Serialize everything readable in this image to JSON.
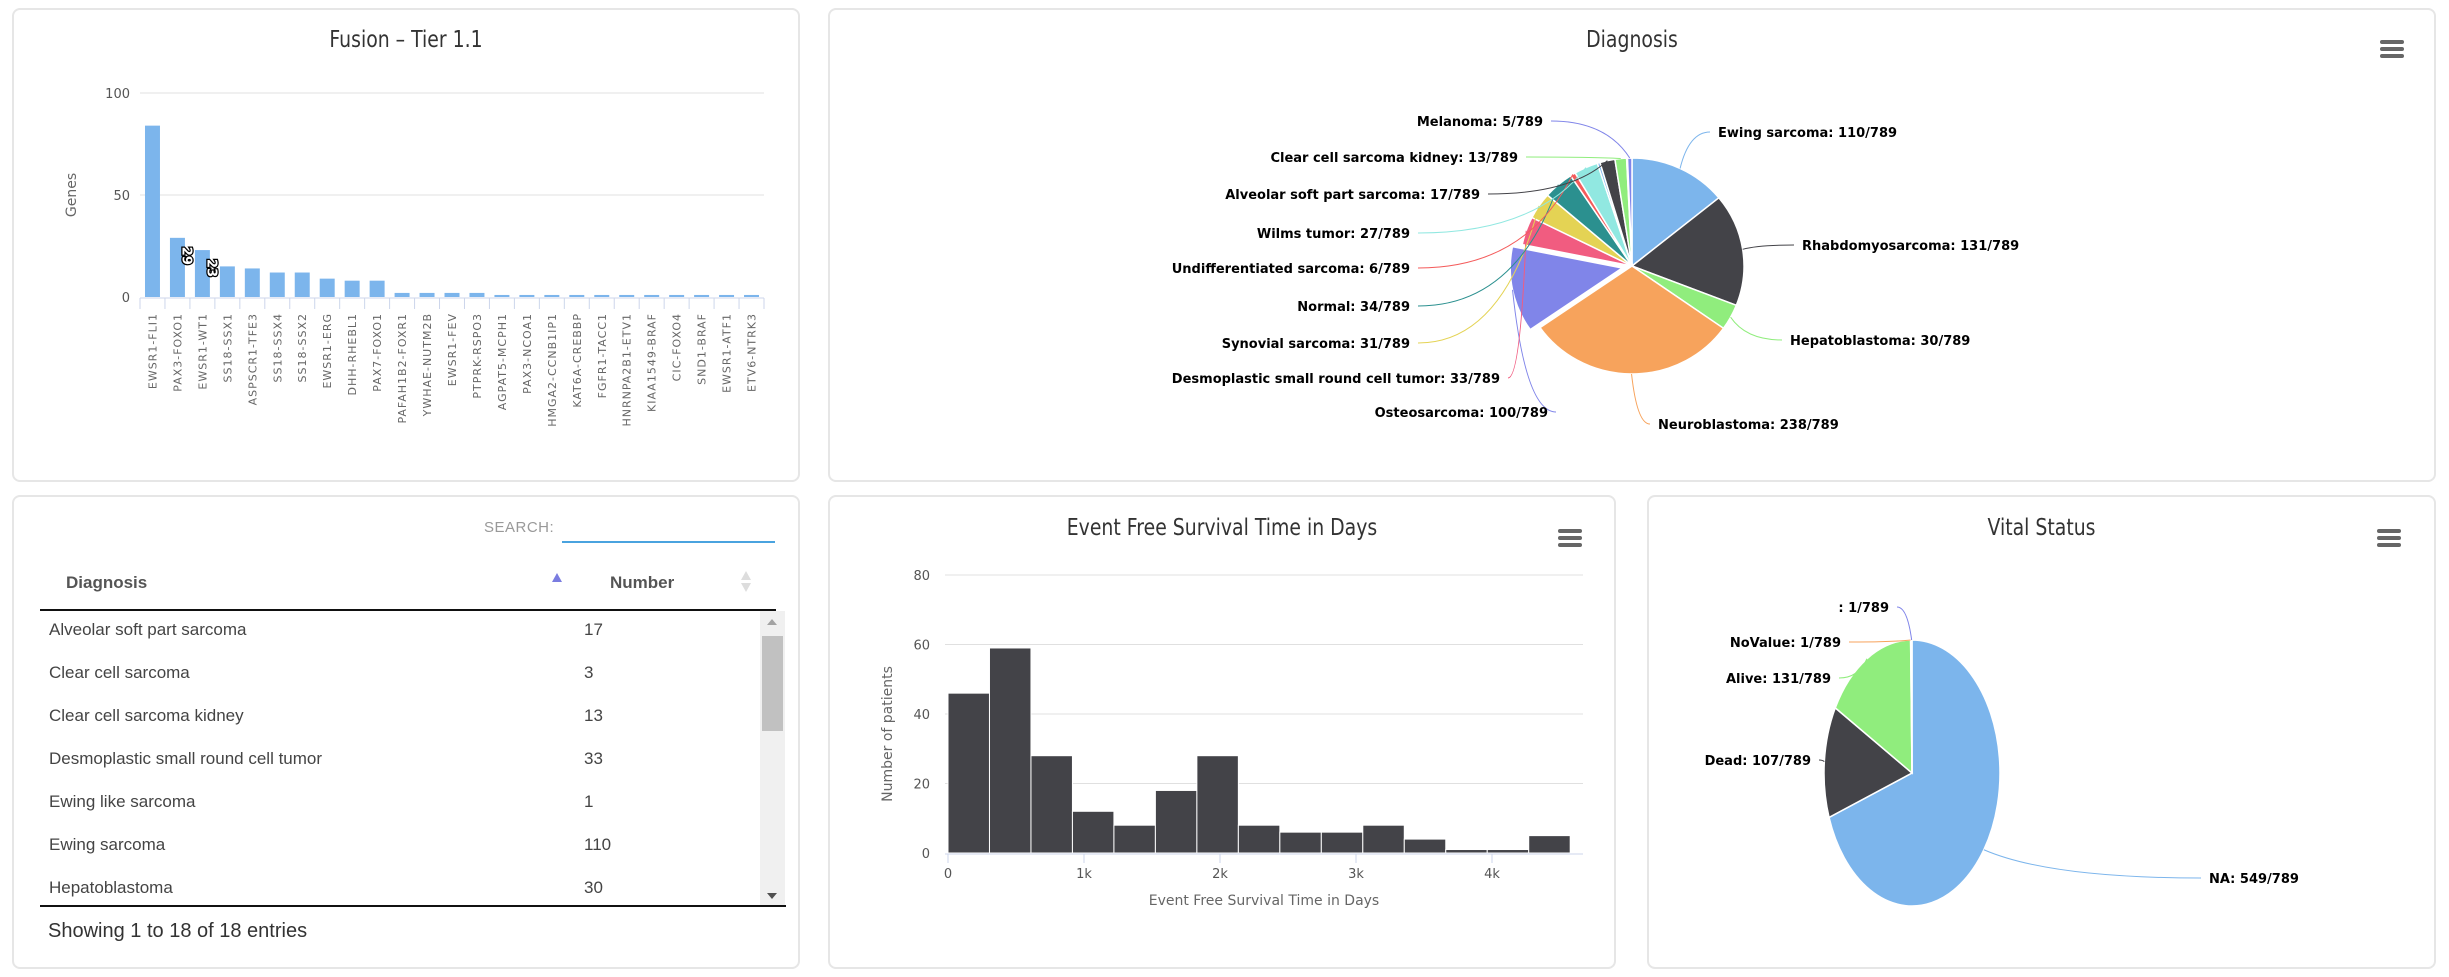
{
  "fusion_panel": {
    "chart_data": {
      "type": "bar",
      "title": "Fusion – Tier 1.1",
      "xlabel": "",
      "ylabel": "Genes",
      "ylim": [
        0,
        100
      ],
      "yticks": [
        "0",
        "50",
        "100"
      ],
      "grid": true,
      "color": "#7cb5ec",
      "categories": [
        "EWSR1-FLI1",
        "PAX3-FOXO1",
        "EWSR1-WT1",
        "SS18-SSX1",
        "ASPSCR1-TFE3",
        "SS18-SSX4",
        "SS18-SSX2",
        "EWSR1-ERG",
        "DHH-RHEBL1",
        "PAX7-FOXO1",
        "PAFAH1B2-FOXR1",
        "YWHAE-NUTM2B",
        "EWSR1-FEV",
        "PTPRK-RSPO3",
        "AGPAT5-MCPH1",
        "PAX3-NCOA1",
        "HMGA2-CCNB1IP1",
        "KAT6A-CREBBP",
        "FGFR1-TACC1",
        "HNRNPA2B1-ETV1",
        "KIAA1549-BRAF",
        "CIC-FOXO4",
        "SND1-BRAF",
        "EWSR1-ATF1",
        "ETV6-NTRK3"
      ],
      "values": [
        84,
        29,
        23,
        15,
        14,
        12,
        12,
        9,
        8,
        8,
        2,
        2,
        2,
        2,
        1,
        1,
        1,
        1,
        1,
        1,
        1,
        1,
        1,
        1,
        1
      ],
      "data_labels": [
        {
          "category": "PAX3-FOXO1",
          "text": "29"
        },
        {
          "category": "EWSR1-WT1",
          "text": "23"
        }
      ]
    }
  },
  "diagnosis_panel": {
    "menu_icon": "hamburger-menu-icon",
    "chart_data": {
      "type": "pie",
      "title": "Diagnosis",
      "total": 789,
      "slices": [
        {
          "name": "Ewing sarcoma",
          "value": 110,
          "label": "Ewing sarcoma: 110/789",
          "color": "#7cb5ec"
        },
        {
          "name": "Rhabdomyosarcoma",
          "value": 131,
          "label": "Rhabdomyosarcoma: 131/789",
          "color": "#434348"
        },
        {
          "name": "Hepatoblastoma",
          "value": 30,
          "label": "Hepatoblastoma: 30/789",
          "color": "#90ed7d"
        },
        {
          "name": "Neuroblastoma",
          "value": 238,
          "label": "Neuroblastoma: 238/789",
          "color": "#f7a35c"
        },
        {
          "name": "Osteosarcoma",
          "value": 100,
          "label": "Osteosarcoma: 100/789",
          "color": "#8085e9",
          "sliced": true
        },
        {
          "name": "Desmoplastic small round cell tumor",
          "value": 33,
          "label": "Desmoplastic small round cell tumor: 33/789",
          "color": "#f15c80"
        },
        {
          "name": "Synovial sarcoma",
          "value": 31,
          "label": "Synovial sarcoma: 31/789",
          "color": "#e4d354"
        },
        {
          "name": "Normal",
          "value": 34,
          "label": "Normal: 34/789",
          "color": "#2b908f"
        },
        {
          "name": "Undifferentiated sarcoma",
          "value": 6,
          "label": "Undifferentiated sarcoma: 6/789",
          "color": "#f45b5b"
        },
        {
          "name": "Wilms tumor",
          "value": 27,
          "label": "Wilms tumor: 27/789",
          "color": "#91e8e1"
        },
        {
          "name": "Clear cell sarcoma",
          "value": 3,
          "label": "",
          "color": "#7cb5ec"
        },
        {
          "name": "Alveolar soft part sarcoma",
          "value": 17,
          "label": "Alveolar soft part sarcoma: 17/789",
          "color": "#434348"
        },
        {
          "name": "Clear cell sarcoma kidney",
          "value": 13,
          "label": "Clear cell sarcoma kidney: 13/789",
          "color": "#90ed7d"
        },
        {
          "name": "Ewing like sarcoma",
          "value": 1,
          "label": "",
          "color": "#f7a35c"
        },
        {
          "name": "Melanoma",
          "value": 5,
          "label": "Melanoma: 5/789",
          "color": "#8085e9"
        }
      ]
    }
  },
  "table_panel": {
    "search_label": "SEARCH:",
    "search_value": "",
    "columns": [
      "Diagnosis",
      "Number"
    ],
    "sort": {
      "column": "Diagnosis",
      "direction": "ascending"
    },
    "rows": [
      [
        "Alveolar soft part sarcoma",
        "17"
      ],
      [
        "Clear cell sarcoma",
        "3"
      ],
      [
        "Clear cell sarcoma kidney",
        "13"
      ],
      [
        "Desmoplastic small round cell tumor",
        "33"
      ],
      [
        "Ewing like sarcoma",
        "1"
      ],
      [
        "Ewing sarcoma",
        "110"
      ],
      [
        "Hepatoblastoma",
        "30"
      ]
    ],
    "info": "Showing 1 to 18 of 18 entries"
  },
  "efs_panel": {
    "menu_icon": "hamburger-menu-icon",
    "chart_data": {
      "type": "bar",
      "subtype": "histogram",
      "title": "Event Free Survival Time in Days",
      "xlabel": "Event Free Survival Time in Days",
      "ylabel": "Number of patients",
      "ylim": [
        0,
        80
      ],
      "yticks": [
        "0",
        "20",
        "40",
        "60",
        "80"
      ],
      "xlim": [
        0,
        4600
      ],
      "xticks": [
        {
          "value": 0,
          "label": "0"
        },
        {
          "value": 1000,
          "label": "1k"
        },
        {
          "value": 2000,
          "label": "2k"
        },
        {
          "value": 3000,
          "label": "3k"
        },
        {
          "value": 4000,
          "label": "4k"
        }
      ],
      "grid": true,
      "color": "#434348",
      "bin_width": 305,
      "bin_starts": [
        0,
        305,
        610,
        915,
        1220,
        1525,
        1830,
        2135,
        2440,
        2745,
        3050,
        3355,
        3660,
        3965,
        4270
      ],
      "values": [
        46,
        59,
        28,
        12,
        8,
        18,
        28,
        8,
        6,
        6,
        8,
        4,
        1,
        1,
        5
      ]
    }
  },
  "vital_panel": {
    "menu_icon": "hamburger-menu-icon",
    "chart_data": {
      "type": "pie",
      "title": "Vital Status",
      "total": 789,
      "slices": [
        {
          "name": "NA",
          "value": 549,
          "label": "NA: 549/789",
          "color": "#7cb5ec"
        },
        {
          "name": "Dead",
          "value": 107,
          "label": "Dead: 107/789",
          "color": "#434348"
        },
        {
          "name": "Alive",
          "value": 131,
          "label": "Alive: 131/789",
          "color": "#90ed7d"
        },
        {
          "name": "NoValue",
          "value": 1,
          "label": "NoValue: 1/789",
          "color": "#f7a35c"
        },
        {
          "name": "",
          "value": 1,
          "label": ": 1/789",
          "color": "#8085e9"
        }
      ]
    }
  }
}
